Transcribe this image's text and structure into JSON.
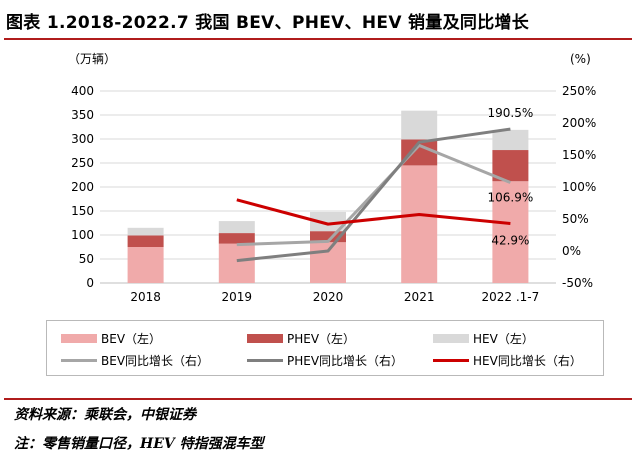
{
  "figure": {
    "title": "图表 1.2018-2022.7 我国 BEV、PHEV、HEV 销量及同比增长",
    "source": "资料来源：乘联会，中银证券",
    "note": "注：零售销量口径，HEV 特指强混车型"
  },
  "colors": {
    "bev": "#f0aaaa",
    "phev": "#c0504d",
    "hev": "#d9d9d9",
    "bev_growth": "#a6a6a6",
    "phev_growth": "#7f7f7f",
    "hev_growth": "#cc0000",
    "rule": "#b01c1c"
  },
  "chart_data": {
    "type": "bar",
    "stacked": true,
    "categories": [
      "2018",
      "2019",
      "2020",
      "2021",
      "2022 .1-7"
    ],
    "left_axis": {
      "unit_label": "（万辆）",
      "ylim": [
        0,
        400
      ],
      "ticks": [
        0,
        50,
        100,
        150,
        200,
        250,
        300,
        350,
        400
      ]
    },
    "right_axis": {
      "unit_label": "(%)",
      "ylim": [
        -50,
        250
      ],
      "ticks": [
        "-50%",
        "0%",
        "50%",
        "100%",
        "150%",
        "200%",
        "250%"
      ]
    },
    "series": [
      {
        "name": "BEV（左）",
        "kind": "bar",
        "axis": "left",
        "values": [
          75,
          82,
          85,
          245,
          212
        ]
      },
      {
        "name": "PHEV（左）",
        "kind": "bar",
        "axis": "left",
        "values": [
          24,
          22,
          23,
          54,
          65
        ]
      },
      {
        "name": "HEV（左）",
        "kind": "bar",
        "axis": "left",
        "values": [
          16,
          25,
          40,
          60,
          42
        ]
      },
      {
        "name": "BEV同比增长（右）",
        "kind": "line",
        "axis": "right",
        "values": [
          null,
          10,
          15,
          165,
          107
        ]
      },
      {
        "name": "PHEV同比增长（右）",
        "kind": "line",
        "axis": "right",
        "values": [
          null,
          -15,
          0,
          170,
          190.5
        ]
      },
      {
        "name": "HEV同比增长（右）",
        "kind": "line",
        "axis": "right",
        "values": [
          null,
          80,
          42,
          57,
          42.9
        ]
      }
    ],
    "annotations": [
      {
        "text": "190.5%",
        "series": "PHEV同比增长（右）",
        "category": "2022 .1-7"
      },
      {
        "text": "106.9%",
        "series": "BEV同比增长（右）",
        "category": "2022 .1-7"
      },
      {
        "text": "42.9%",
        "series": "HEV同比增长（右）",
        "category": "2022 .1-7"
      }
    ],
    "grid": true,
    "legend_position": "bottom"
  }
}
